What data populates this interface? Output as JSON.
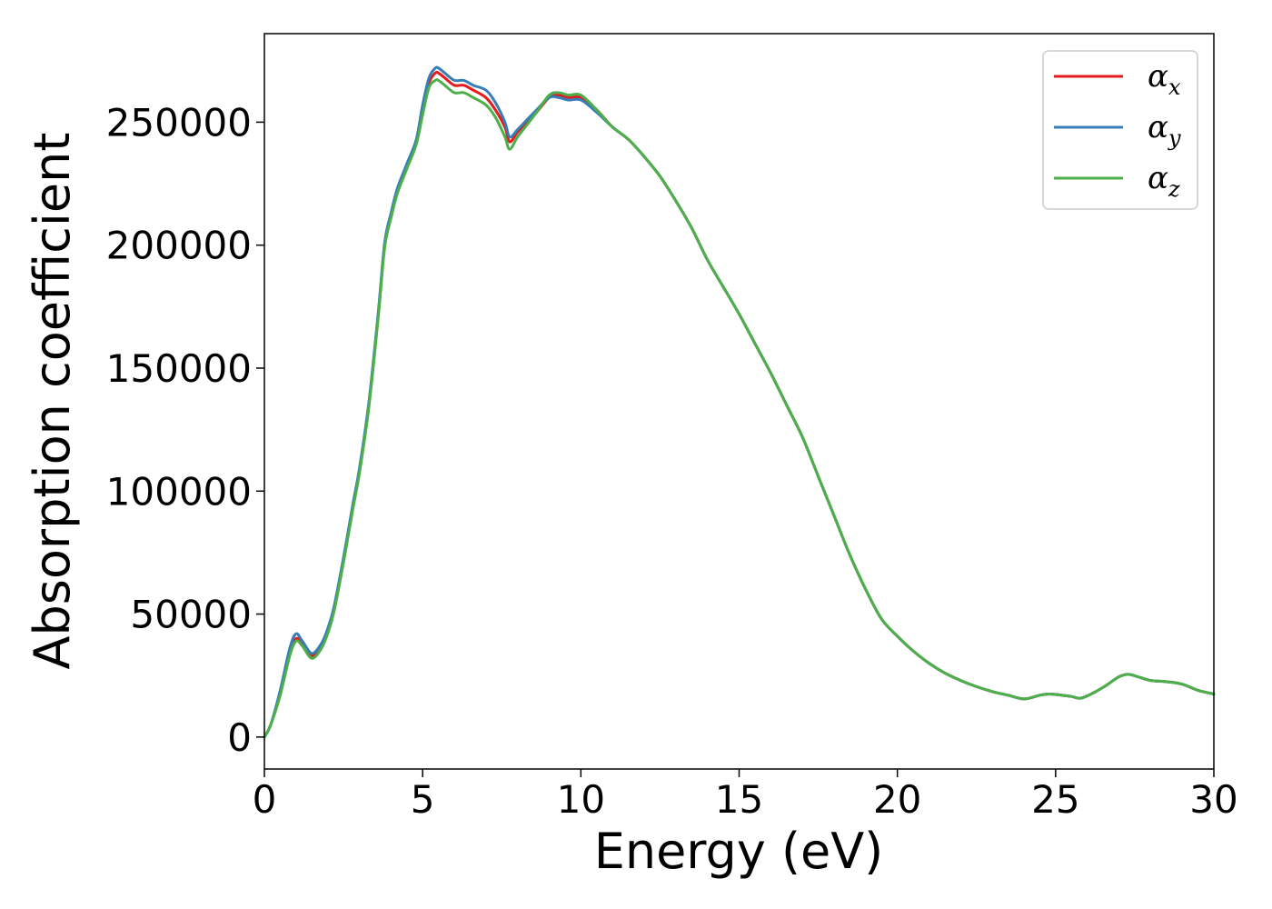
{
  "chart_data": {
    "type": "line",
    "title": "",
    "xlabel": "Energy (eV)",
    "ylabel": "Absorption coefficient",
    "xlim": [
      0,
      30
    ],
    "ylim": [
      -13000,
      286000
    ],
    "xticks": [
      0,
      5,
      10,
      15,
      20,
      25,
      30
    ],
    "yticks": [
      0,
      50000,
      100000,
      150000,
      200000,
      250000
    ],
    "xtick_labels": [
      "0",
      "5",
      "10",
      "15",
      "20",
      "25",
      "30"
    ],
    "ytick_labels": [
      "0",
      "50000",
      "100000",
      "150000",
      "200000",
      "250000"
    ],
    "grid": false,
    "legend_position": "top-right",
    "x": [
      0,
      0.2,
      0.5,
      0.8,
      1.0,
      1.2,
      1.5,
      1.8,
      2.0,
      2.2,
      2.5,
      2.8,
      3.0,
      3.3,
      3.6,
      3.8,
      4.0,
      4.2,
      4.5,
      4.8,
      5.0,
      5.2,
      5.4,
      5.5,
      5.7,
      6.0,
      6.3,
      6.6,
      7.0,
      7.3,
      7.6,
      7.75,
      8.0,
      8.3,
      8.6,
      9.0,
      9.3,
      9.6,
      10.0,
      10.5,
      11.0,
      11.5,
      12.0,
      12.5,
      13.0,
      13.5,
      14.0,
      14.5,
      15.0,
      15.5,
      16.0,
      16.5,
      17.0,
      17.5,
      18.0,
      18.5,
      19.0,
      19.5,
      20.0,
      20.5,
      21.0,
      21.5,
      22.0,
      22.5,
      23.0,
      23.5,
      24.0,
      24.5,
      24.8,
      25.2,
      25.5,
      25.8,
      26.2,
      26.6,
      27.0,
      27.3,
      27.6,
      28.0,
      28.5,
      29.0,
      29.5,
      30.0
    ],
    "series": [
      {
        "name": "α_x",
        "label_main": "α",
        "label_sub": "x",
        "color": "#e41a1c",
        "values": [
          0,
          5000,
          18000,
          34000,
          40000,
          38000,
          33000,
          37000,
          43000,
          52000,
          72000,
          94000,
          108000,
          135000,
          172000,
          200000,
          212000,
          222000,
          232000,
          242000,
          255000,
          266000,
          270000,
          270000,
          268000,
          265000,
          265000,
          263000,
          260000,
          255000,
          248000,
          242000,
          246000,
          250000,
          254000,
          260000,
          261000,
          260000,
          260000,
          255000,
          248000,
          243000,
          236000,
          228000,
          218000,
          207000,
          194000,
          183000,
          172000,
          160000,
          148000,
          135000,
          122000,
          106000,
          90000,
          74000,
          60000,
          48000,
          41000,
          35000,
          30000,
          26000,
          23000,
          20500,
          18500,
          17000,
          15500,
          17000,
          17500,
          17000,
          16500,
          15800,
          18000,
          21000,
          24500,
          25500,
          24500,
          23000,
          22500,
          21500,
          19000,
          17500
        ]
      },
      {
        "name": "α_y",
        "label_main": "α",
        "label_sub": "y",
        "color": "#377eb8",
        "values": [
          0,
          5000,
          19000,
          36000,
          42000,
          39000,
          34000,
          38000,
          44000,
          53000,
          73000,
          95000,
          109000,
          136000,
          173000,
          201000,
          213000,
          223000,
          233000,
          243000,
          257000,
          268000,
          272000,
          272000,
          270000,
          267000,
          267000,
          265000,
          263000,
          258000,
          250000,
          244000,
          247000,
          251000,
          255000,
          260000,
          260000,
          259000,
          259000,
          254000,
          248000,
          243000,
          236000,
          228000,
          218000,
          207000,
          194000,
          183000,
          172000,
          160000,
          148000,
          135000,
          122000,
          106000,
          90000,
          74000,
          60000,
          48000,
          41000,
          35000,
          30000,
          26000,
          23000,
          20500,
          18500,
          17000,
          15500,
          17000,
          17500,
          17000,
          16500,
          15800,
          18000,
          21000,
          24500,
          25500,
          24500,
          23000,
          22500,
          21500,
          19000,
          17500
        ]
      },
      {
        "name": "α_z",
        "label_main": "α",
        "label_sub": "z",
        "color": "#4daf4a",
        "values": [
          0,
          5000,
          17000,
          33000,
          39000,
          37000,
          32000,
          36000,
          42000,
          51000,
          71000,
          93000,
          107000,
          134000,
          171000,
          199000,
          211000,
          221000,
          231000,
          241000,
          253000,
          264000,
          267000,
          267000,
          265000,
          262000,
          262000,
          260000,
          257000,
          252000,
          244000,
          239000,
          244000,
          249000,
          254000,
          261000,
          262000,
          261000,
          261000,
          255000,
          248000,
          243000,
          236000,
          228000,
          218000,
          207000,
          194000,
          183000,
          172000,
          160000,
          148000,
          135000,
          122000,
          106000,
          90000,
          74000,
          60000,
          48000,
          41000,
          35000,
          30000,
          26000,
          23000,
          20500,
          18500,
          17000,
          15500,
          17000,
          17500,
          17000,
          16500,
          15800,
          18000,
          21000,
          24500,
          25500,
          24500,
          23000,
          22500,
          21500,
          19000,
          17500
        ]
      }
    ]
  }
}
